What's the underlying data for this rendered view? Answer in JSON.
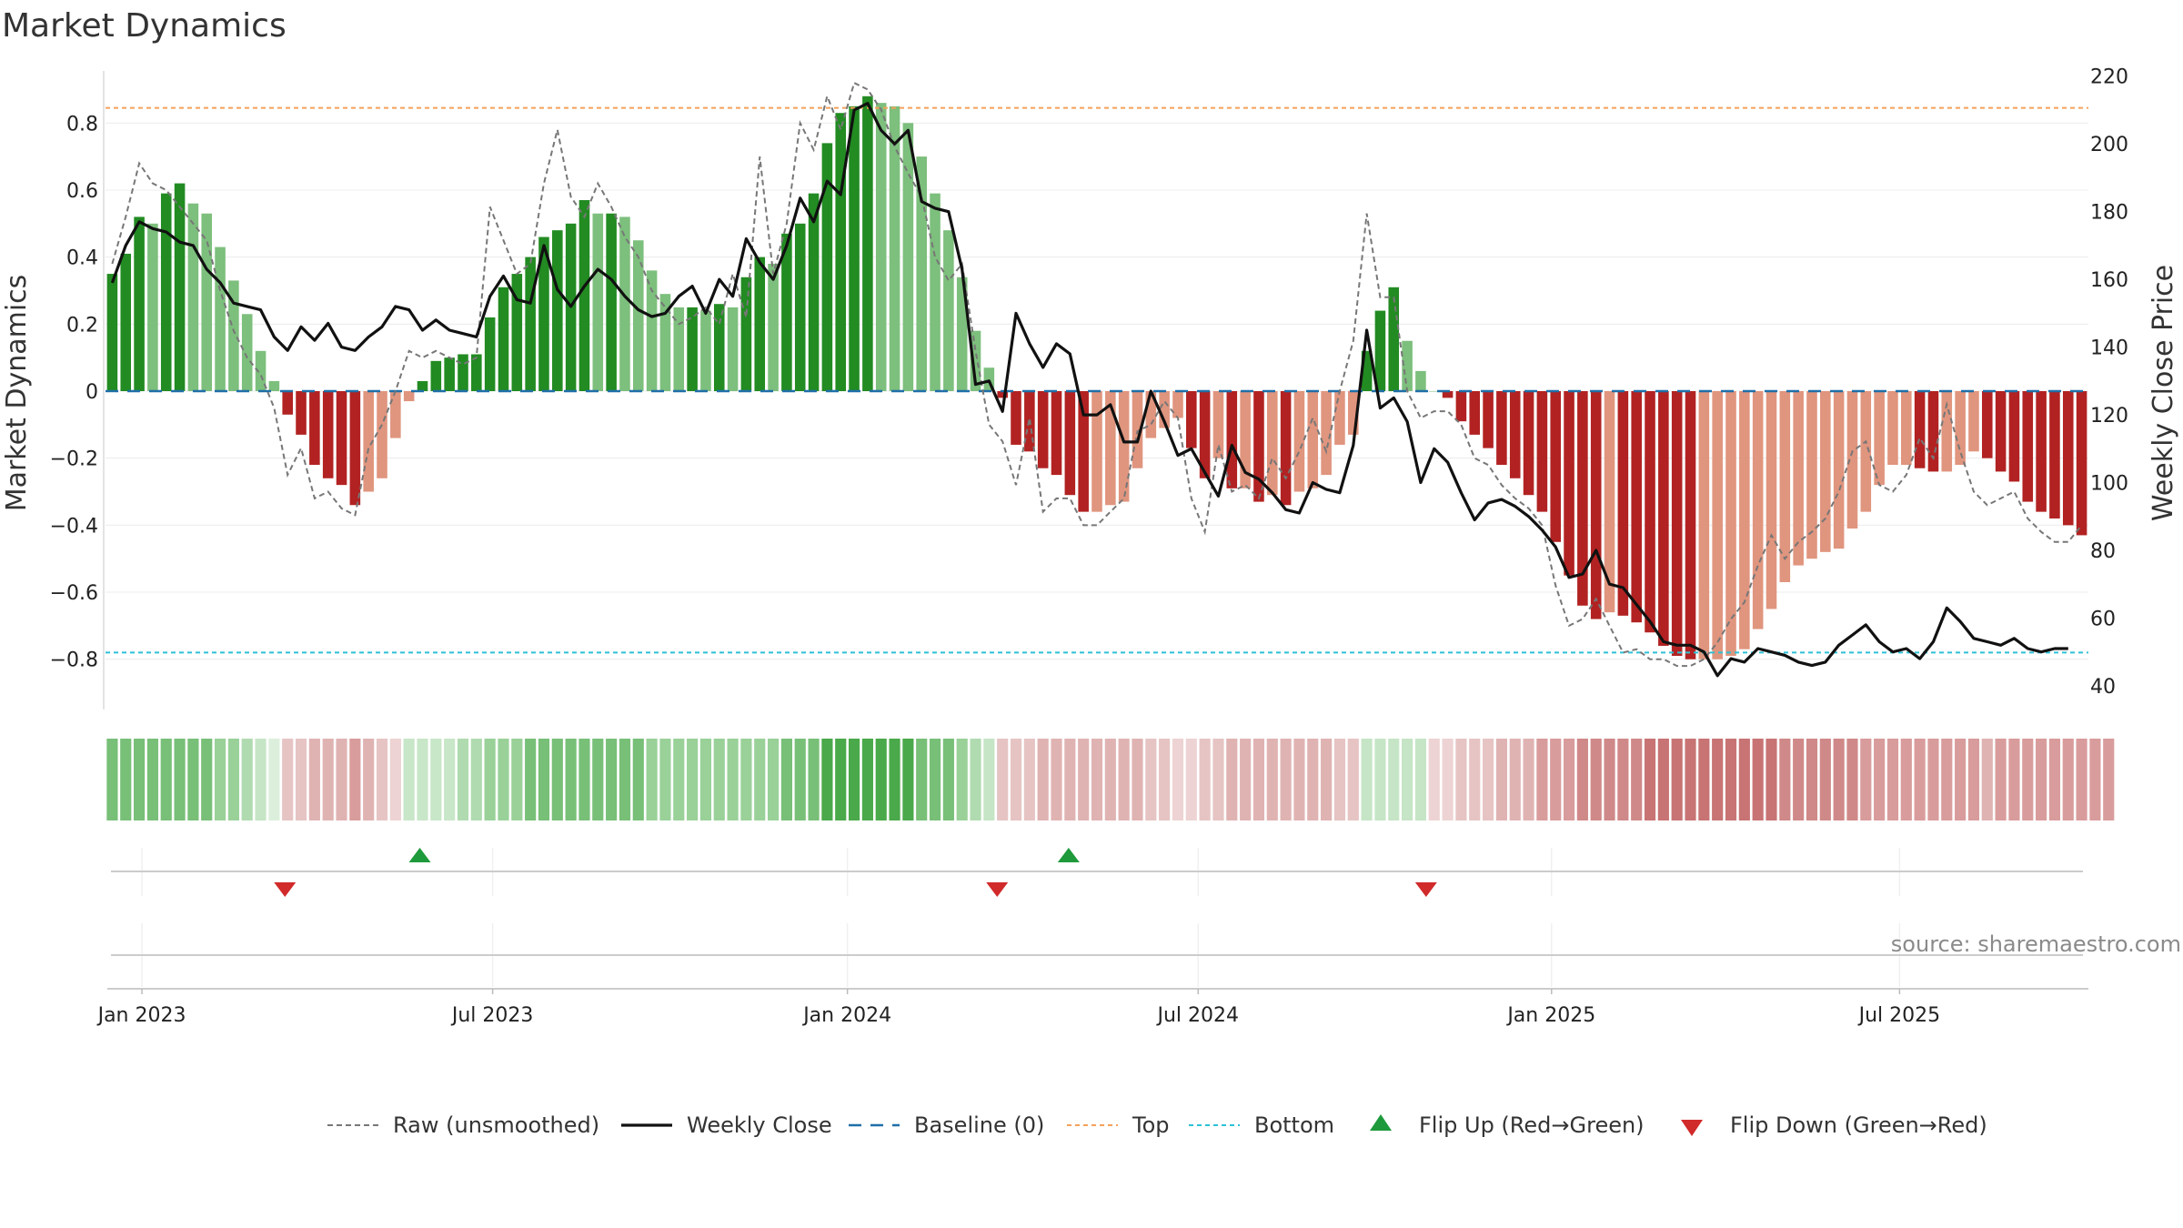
{
  "chart_data": {
    "type": "bar",
    "title": "Market Dynamics",
    "ylabel": "Market Dynamics",
    "y2label": "Weekly Close Price",
    "ylim": [
      -0.95,
      0.95
    ],
    "y2lim": [
      33,
      221
    ],
    "yticks": [
      0.8,
      0.6,
      0.4,
      0.2,
      0,
      -0.2,
      -0.4,
      -0.6,
      -0.8
    ],
    "yticklabels": [
      "0.8",
      "0.6",
      "0.4",
      "0.2",
      "0",
      "−0.2",
      "−0.4",
      "−0.6",
      "−0.8"
    ],
    "y2ticks": [
      220,
      200,
      180,
      160,
      140,
      120,
      100,
      80,
      60,
      40
    ],
    "xticks": [
      {
        "label": "Jan 2023",
        "week": 0
      },
      {
        "label": "Jul 2023",
        "week": 26
      },
      {
        "label": "Jan 2024",
        "week": 52.3
      },
      {
        "label": "Jul 2024",
        "week": 78.3
      },
      {
        "label": "Jan 2025",
        "week": 104.5
      },
      {
        "label": "Jul 2025",
        "week": 130.3
      }
    ],
    "week_start": -2.2,
    "top_level": 0.845,
    "bottom_level": -0.78,
    "series": [
      {
        "name": "Market Dynamics",
        "kind": "bar",
        "values": [
          0.35,
          0.41,
          0.52,
          0.5,
          0.59,
          0.62,
          0.56,
          0.53,
          0.43,
          0.33,
          0.23,
          0.12,
          0.03,
          -0.07,
          -0.13,
          -0.22,
          -0.26,
          -0.28,
          -0.34,
          -0.3,
          -0.26,
          -0.14,
          -0.03,
          0.03,
          0.09,
          0.1,
          0.11,
          0.11,
          0.22,
          0.31,
          0.35,
          0.4,
          0.46,
          0.48,
          0.5,
          0.57,
          0.53,
          0.53,
          0.52,
          0.45,
          0.36,
          0.29,
          0.25,
          0.25,
          0.24,
          0.26,
          0.25,
          0.34,
          0.4,
          0.38,
          0.47,
          0.5,
          0.59,
          0.74,
          0.83,
          0.85,
          0.88,
          0.86,
          0.85,
          0.8,
          0.7,
          0.59,
          0.48,
          0.34,
          0.18,
          0.07,
          -0.02,
          -0.16,
          -0.18,
          -0.23,
          -0.25,
          -0.31,
          -0.36,
          -0.36,
          -0.34,
          -0.33,
          -0.23,
          -0.14,
          -0.11,
          -0.08,
          -0.17,
          -0.26,
          -0.2,
          -0.29,
          -0.29,
          -0.33,
          -0.31,
          -0.34,
          -0.3,
          -0.29,
          -0.25,
          -0.16,
          -0.13,
          0.12,
          0.24,
          0.31,
          0.15,
          0.06,
          0.0,
          -0.02,
          -0.09,
          -0.13,
          -0.17,
          -0.22,
          -0.26,
          -0.31,
          -0.36,
          -0.45,
          -0.55,
          -0.64,
          -0.68,
          -0.66,
          -0.67,
          -0.69,
          -0.72,
          -0.76,
          -0.79,
          -0.8,
          -0.8,
          -0.8,
          -0.79,
          -0.77,
          -0.71,
          -0.65,
          -0.57,
          -0.52,
          -0.5,
          -0.48,
          -0.47,
          -0.41,
          -0.36,
          -0.28,
          -0.22,
          -0.22,
          -0.23,
          -0.24,
          -0.24,
          -0.22,
          -0.18,
          -0.2,
          -0.24,
          -0.27,
          -0.33,
          -0.36,
          -0.38,
          -0.4,
          -0.43
        ]
      },
      {
        "name": "Raw (unsmoothed)",
        "kind": "line",
        "values": [
          0.38,
          0.52,
          0.68,
          0.62,
          0.6,
          0.55,
          0.5,
          0.45,
          0.3,
          0.18,
          0.1,
          0.05,
          -0.05,
          -0.25,
          -0.17,
          -0.32,
          -0.3,
          -0.35,
          -0.37,
          -0.17,
          -0.1,
          0.0,
          0.12,
          0.1,
          0.12,
          0.1,
          0.08,
          0.1,
          0.55,
          0.45,
          0.35,
          0.38,
          0.62,
          0.78,
          0.58,
          0.52,
          0.62,
          0.55,
          0.46,
          0.4,
          0.3,
          0.25,
          0.2,
          0.22,
          0.25,
          0.2,
          0.35,
          0.22,
          0.7,
          0.35,
          0.5,
          0.8,
          0.72,
          0.88,
          0.78,
          0.92,
          0.9,
          0.84,
          0.73,
          0.65,
          0.58,
          0.4,
          0.33,
          0.38,
          0.12,
          -0.1,
          -0.15,
          -0.28,
          -0.08,
          -0.36,
          -0.32,
          -0.32,
          -0.4,
          -0.4,
          -0.36,
          -0.32,
          -0.12,
          -0.1,
          -0.03,
          -0.08,
          -0.32,
          -0.42,
          -0.16,
          -0.3,
          -0.28,
          -0.32,
          -0.2,
          -0.26,
          -0.18,
          -0.08,
          -0.18,
          0.0,
          0.15,
          0.53,
          0.28,
          0.28,
          0.0,
          -0.08,
          -0.06,
          -0.06,
          -0.1,
          -0.2,
          -0.22,
          -0.28,
          -0.32,
          -0.35,
          -0.4,
          -0.58,
          -0.7,
          -0.68,
          -0.62,
          -0.7,
          -0.78,
          -0.77,
          -0.8,
          -0.8,
          -0.82,
          -0.82,
          -0.8,
          -0.75,
          -0.68,
          -0.63,
          -0.52,
          -0.43,
          -0.5,
          -0.45,
          -0.42,
          -0.38,
          -0.3,
          -0.18,
          -0.15,
          -0.28,
          -0.3,
          -0.25,
          -0.14,
          -0.2,
          -0.04,
          -0.18,
          -0.3,
          -0.34,
          -0.32,
          -0.3,
          -0.38,
          -0.42,
          -0.45,
          -0.45,
          -0.4
        ]
      },
      {
        "name": "Weekly Close",
        "kind": "line",
        "axis": "right",
        "values": [
          159,
          170,
          177,
          175,
          174,
          171,
          170,
          163,
          159,
          153,
          152,
          151,
          143,
          139,
          146,
          142,
          147,
          140,
          139,
          143,
          146,
          152,
          151,
          145,
          148,
          145,
          144,
          143,
          155,
          161,
          154,
          153,
          170,
          157,
          152,
          158,
          163,
          160,
          155,
          151,
          149,
          150,
          155,
          158,
          150,
          160,
          155,
          172,
          165,
          160,
          170,
          184,
          177,
          189,
          185,
          210,
          212,
          204,
          200,
          204,
          183,
          181,
          180,
          163,
          129,
          130,
          121,
          150,
          141,
          134,
          141,
          138,
          120,
          120,
          123,
          112,
          112,
          127,
          118,
          108,
          110,
          103,
          96,
          111,
          103,
          101,
          97,
          92,
          91,
          100,
          98,
          97,
          111,
          145,
          122,
          125,
          118,
          100,
          110,
          106,
          97,
          89,
          94,
          95,
          93,
          90,
          86,
          81,
          72,
          73,
          80,
          70,
          69,
          64,
          59,
          53,
          52,
          52,
          50,
          43,
          48,
          47,
          51,
          50,
          49,
          47,
          46,
          47,
          52,
          55,
          58,
          53,
          50,
          51,
          48,
          53,
          63,
          59,
          54,
          53,
          52,
          54,
          51,
          50,
          51,
          51
        ]
      }
    ],
    "strip_colors": [
      "#78bf78",
      "#78bf78",
      "#78bf78",
      "#78bf78",
      "#78bf78",
      "#78bf78",
      "#78bf78",
      "#78bf78",
      "#99d199",
      "#99d199",
      "#b0dbb0",
      "#c6e5c6",
      "#dcefdc",
      "#e6c4c4",
      "#e6c4c4",
      "#e0b3b3",
      "#e0b3b3",
      "#e0b3b3",
      "#d99c9c",
      "#e0b3b3",
      "#e6c4c4",
      "#edd3d3",
      "#c8e6c8",
      "#c8e6c8",
      "#c8e6c8",
      "#c8e6c8",
      "#b0dbb0",
      "#b0dbb0",
      "#99d199",
      "#99d199",
      "#99d199",
      "#78bf78",
      "#78bf78",
      "#78bf78",
      "#78bf78",
      "#78bf78",
      "#78bf78",
      "#78bf78",
      "#78bf78",
      "#78bf78",
      "#99d199",
      "#99d199",
      "#99d199",
      "#99d199",
      "#99d199",
      "#99d199",
      "#99d199",
      "#99d199",
      "#99d199",
      "#99d199",
      "#78bf78",
      "#78bf78",
      "#78bf78",
      "#4aa94a",
      "#4aa94a",
      "#4aa94a",
      "#4aa94a",
      "#4aa94a",
      "#4aa94a",
      "#4aa94a",
      "#78bf78",
      "#78bf78",
      "#78bf78",
      "#99d199",
      "#b0dbb0",
      "#c6e5c6",
      "#e6c4c4",
      "#e6c4c4",
      "#e6c4c4",
      "#e0b3b3",
      "#e0b3b3",
      "#e0b3b3",
      "#e0b3b3",
      "#e0b3b3",
      "#e0b3b3",
      "#e0b3b3",
      "#e0b3b3",
      "#e6c4c4",
      "#e6c4c4",
      "#edd3d3",
      "#edd3d3",
      "#e6c4c4",
      "#e6c4c4",
      "#e0b3b3",
      "#e0b3b3",
      "#e0b3b3",
      "#e0b3b3",
      "#e0b3b3",
      "#e0b3b3",
      "#e0b3b3",
      "#e0b3b3",
      "#e6c4c4",
      "#e6c4c4",
      "#c6e5c6",
      "#c6e5c6",
      "#c6e5c6",
      "#c6e5c6",
      "#c6e5c6",
      "#edd3d3",
      "#edd3d3",
      "#e6c4c4",
      "#e6c4c4",
      "#e6c4c4",
      "#e0b3b3",
      "#e0b3b3",
      "#e0b3b3",
      "#d99c9c",
      "#d99c9c",
      "#d99c9c",
      "#d08989",
      "#d08989",
      "#d08989",
      "#d08989",
      "#d08989",
      "#c87474",
      "#c87474",
      "#c87474",
      "#c87474",
      "#c87474",
      "#c87474",
      "#c87474",
      "#c87474",
      "#c87474",
      "#c87474",
      "#d08989",
      "#d08989",
      "#d08989",
      "#d08989",
      "#d08989",
      "#d08989",
      "#d99c9c",
      "#d99c9c",
      "#d99c9c",
      "#d99c9c",
      "#d99c9c",
      "#d99c9c",
      "#d99c9c",
      "#d99c9c",
      "#d99c9c",
      "#e0b3b3",
      "#d99c9c",
      "#d99c9c",
      "#d99c9c",
      "#d99c9c",
      "#d99c9c",
      "#d99c9c",
      "#d99c9c",
      "#d99c9c",
      "#d99c9c"
    ],
    "flips_up": [
      20.6,
      68.7
    ],
    "flips_down": [
      10.6,
      63.4,
      95.2
    ],
    "colors": {
      "strong_green": "#228b22",
      "light_green": "#7dbf7d",
      "strong_red": "#b22222",
      "light_red": "#e0957e",
      "raw": "#777777",
      "close": "#111111",
      "baseline": "#1f6fa8",
      "top": "#f4a15a",
      "bottom": "#2cc1d6",
      "flip_up": "#1e9a3c",
      "flip_down": "#d12a2a"
    },
    "legend": [
      {
        "label": "Raw (unsmoothed)",
        "icon": "dashed-gray-line"
      },
      {
        "label": "Weekly Close",
        "icon": "solid-black-line"
      },
      {
        "label": "Baseline (0)",
        "icon": "dashed-blue-line"
      },
      {
        "label": "Top",
        "icon": "dotted-orange-line"
      },
      {
        "label": "Bottom",
        "icon": "dotted-cyan-line"
      },
      {
        "label": "Flip Up (Red→Green)",
        "icon": "green-triangle-up"
      },
      {
        "label": "Flip Down (Green→Red)",
        "icon": "red-triangle-down"
      }
    ],
    "source": "source: sharemaestro.com",
    "grid": true,
    "legend_position": "bottom"
  }
}
